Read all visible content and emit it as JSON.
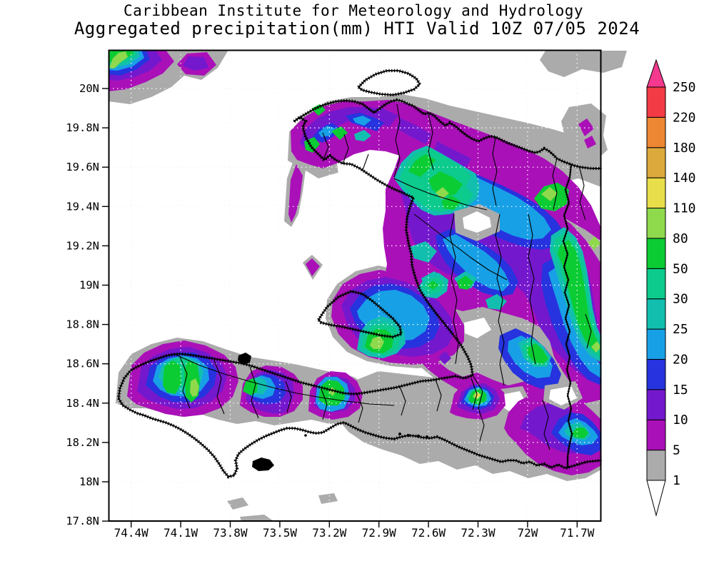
{
  "title": {
    "line1": "Caribbean Institute for Meteorology and Hydrology",
    "line2": "Aggregated precipitation(mm) HTI Valid 10Z 07/05 2024"
  },
  "axes": {
    "lat_ticks": [
      "20N",
      "19.8N",
      "19.6N",
      "19.4N",
      "19.2N",
      "19N",
      "18.8N",
      "18.6N",
      "18.4N",
      "18.2N",
      "18N",
      "17.8N"
    ],
    "lon_ticks": [
      "74.4W",
      "74.1W",
      "73.8W",
      "73.5W",
      "73.2W",
      "72.9W",
      "72.6W",
      "72.3W",
      "72W",
      "71.7W"
    ]
  },
  "colorbar": {
    "levels": [
      "1",
      "5",
      "10",
      "15",
      "20",
      "25",
      "30",
      "50",
      "80",
      "110",
      "140",
      "180",
      "220",
      "250"
    ],
    "units": "mm"
  },
  "palette": {
    "0": "#FFFFFF",
    "1": "#ABABAB",
    "5": "#AA10B8",
    "10": "#7418CE",
    "15": "#2633DE",
    "20": "#18A0E6",
    "25": "#12BFAE",
    "30": "#0DCA8D",
    "50": "#0BCC33",
    "80": "#8FD94C",
    "110": "#E8DD4A",
    "140": "#DCA93C",
    "180": "#ED8733",
    "220": "#F23B45",
    "250": "#F4398F"
  },
  "chart_data": {
    "type": "contour-map",
    "title": "Aggregated precipitation(mm) HTI Valid 10Z 07/05 2024",
    "organization": "Caribbean Institute for Meteorology and Hydrology",
    "region": "Haiti (HTI) / western Hispaniola",
    "units": "mm",
    "lon_range_deg_w": [
      74.55,
      71.55
    ],
    "lat_range_deg_n": [
      17.8,
      20.2
    ],
    "grid": "dashed graticule every 0.3 deg lon / 0.2 deg lat",
    "contour_levels_mm": [
      1,
      5,
      10,
      15,
      20,
      25,
      30,
      50,
      80,
      110,
      140,
      180,
      220,
      250
    ],
    "legend_position": "right",
    "features": [
      {
        "area": "offshore northwest corner (74.5W 20.15N)",
        "max_mm": "80-110"
      },
      {
        "area": "northwest claw band Mole-St-Nicolas to Gonaives",
        "max_mm": "50-80"
      },
      {
        "area": "north interior diagonal (72.9W 19.6N toward 71.9W 19.2N)",
        "max_mm": "50-110"
      },
      {
        "area": "upper-right interior spot (72.2W 19.45N)",
        "max_mm": "80-110"
      },
      {
        "area": "eastern edge column near Dominican border (71.6W 18.9-19.4N)",
        "max_mm": "80-110"
      },
      {
        "area": "Gonave Island southeast end (72.9W 18.8N)",
        "max_mm": "80-110"
      },
      {
        "area": "Tiburon peninsula west (74.2-74.0W 18.5N)",
        "max_mm": "80-110"
      },
      {
        "area": "Tiburon peninsula center (73.6W 18.5N)",
        "max_mm": "50-80"
      },
      {
        "area": "Tiburon peninsula east (73.2W 18.5N)",
        "max_mm": "80-110"
      },
      {
        "area": "south coast east of Port-au-Prince (72.3W 18.45N)",
        "max_mm": "110-140"
      },
      {
        "area": "southeast corner near border (71.7W 18.3N)",
        "max_mm": "50-80"
      },
      {
        "area": "scattered light areas elsewhere",
        "max_mm": "1-5"
      }
    ]
  }
}
